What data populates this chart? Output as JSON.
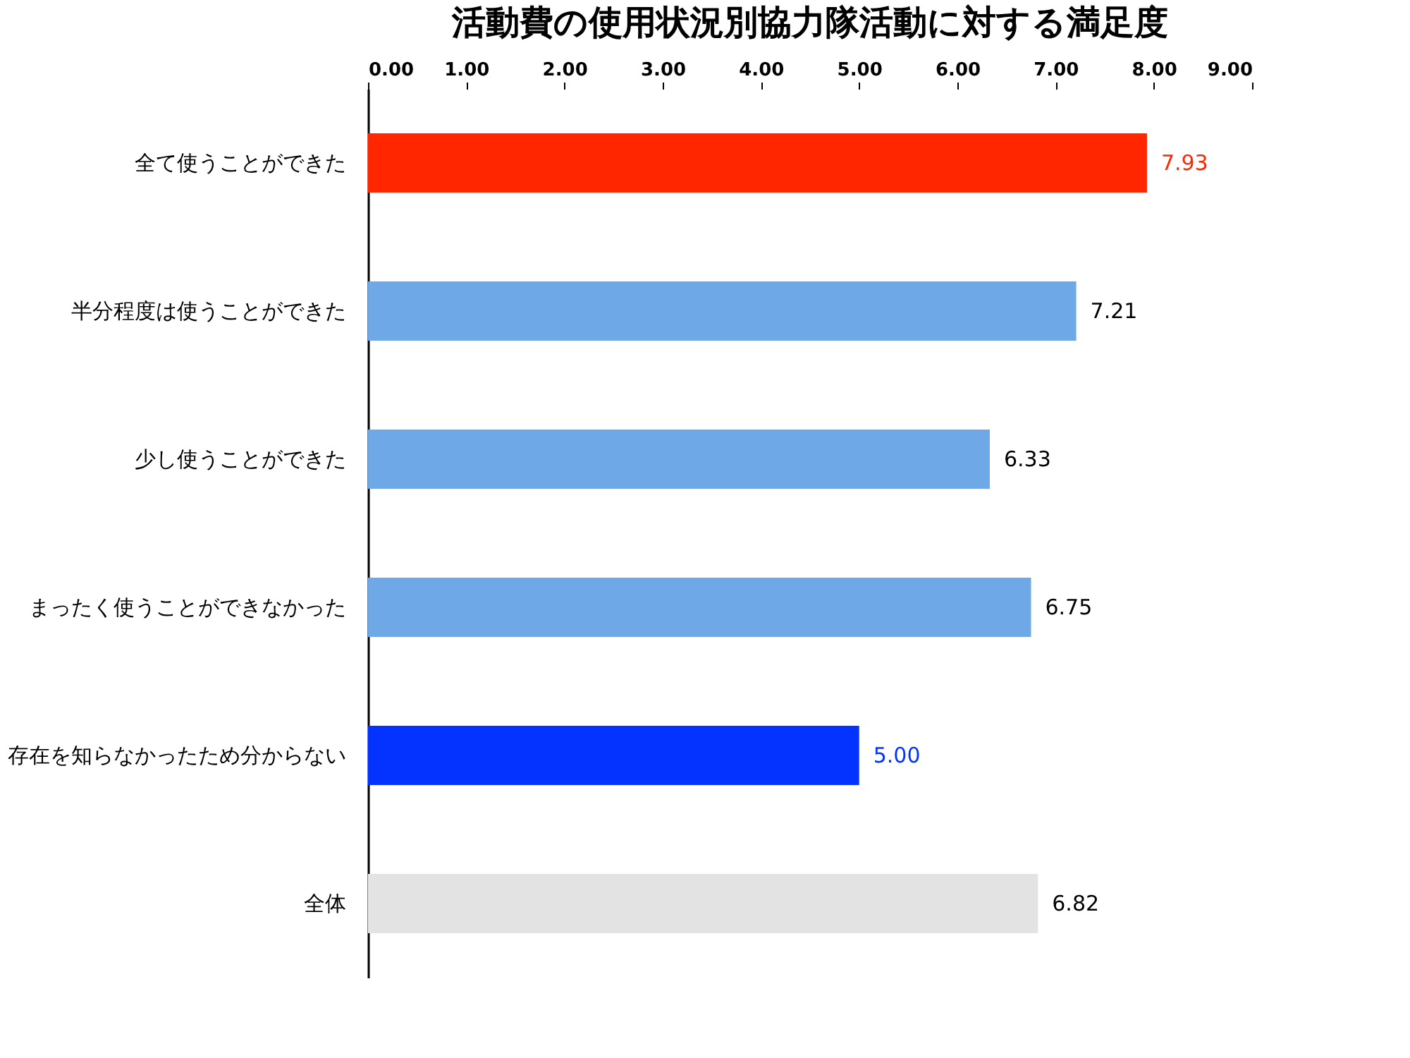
{
  "chart_data": {
    "type": "bar",
    "orientation": "horizontal",
    "title": "活動費の使用状況別協力隊活動に対する満足度",
    "categories": [
      "全て使うことができた",
      "半分程度は使うことができた",
      "少し使うことができた",
      "まったく使うことができなかった",
      "存在を知らなかったため分からない",
      "全体"
    ],
    "values": [
      7.93,
      7.21,
      6.33,
      6.75,
      5.0,
      6.82
    ],
    "colors": [
      "#ff2600",
      "#6fa8e6",
      "#6fa8e6",
      "#6fa8e6",
      "#0433ff",
      "#e3e3e3"
    ],
    "value_labels": [
      "7.93",
      "7.21",
      "6.33",
      "6.75",
      "5.00",
      "6.82"
    ],
    "xlim": [
      0,
      9
    ],
    "xticks": [
      {
        "value": 0,
        "label": "0.00"
      },
      {
        "value": 1,
        "label": "1.00"
      },
      {
        "value": 2,
        "label": "2.00"
      },
      {
        "value": 3,
        "label": "3.00"
      },
      {
        "value": 4,
        "label": "4.00"
      },
      {
        "value": 5,
        "label": "5.00"
      },
      {
        "value": 6,
        "label": "6.00"
      },
      {
        "value": 7,
        "label": "7.00"
      },
      {
        "value": 8,
        "label": "8.00"
      },
      {
        "value": 9,
        "label": "9.00"
      }
    ],
    "grid": false
  }
}
